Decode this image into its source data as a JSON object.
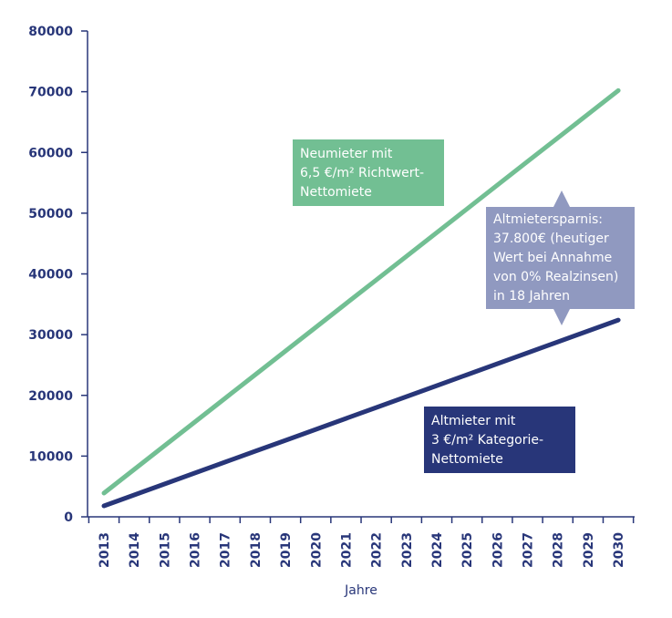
{
  "chart_data": {
    "type": "line",
    "title": "",
    "xlabel": "Jahre",
    "ylabel": "",
    "x": [
      "2013",
      "2014",
      "2015",
      "2016",
      "2017",
      "2018",
      "2019",
      "2020",
      "2021",
      "2022",
      "2023",
      "2024",
      "2025",
      "2026",
      "2027",
      "2028",
      "2029",
      "2030"
    ],
    "ylim": [
      0,
      80000
    ],
    "yticks": [
      0,
      10000,
      20000,
      30000,
      40000,
      50000,
      60000,
      70000,
      80000
    ],
    "grid": false,
    "series": [
      {
        "name": "Neumieter",
        "color": "#72bf93",
        "values": [
          3900,
          7800,
          11700,
          15600,
          19500,
          23400,
          27300,
          31200,
          35100,
          39000,
          42900,
          46800,
          50700,
          54600,
          58500,
          62400,
          66300,
          70200
        ]
      },
      {
        "name": "Altmieter",
        "color": "#283679",
        "values": [
          1800,
          3600,
          5400,
          7200,
          9000,
          10800,
          12600,
          14400,
          16200,
          18000,
          19800,
          21600,
          23400,
          25200,
          27000,
          28800,
          30600,
          32400
        ]
      }
    ],
    "annotations": {
      "new_tenant": [
        "Neumieter mit",
        "6,5 €/m² Richtwert-",
        "Nettomiete"
      ],
      "old_tenant": [
        "Altmieter mit",
        "3 €/m² Kategorie-",
        "Nettomiete"
      ],
      "savings": [
        "Altmietersparnis:",
        "37.800€ (heutiger",
        "Wert bei Annahme",
        "von 0% Realzinsen)",
        "in 18 Jahren"
      ]
    }
  }
}
